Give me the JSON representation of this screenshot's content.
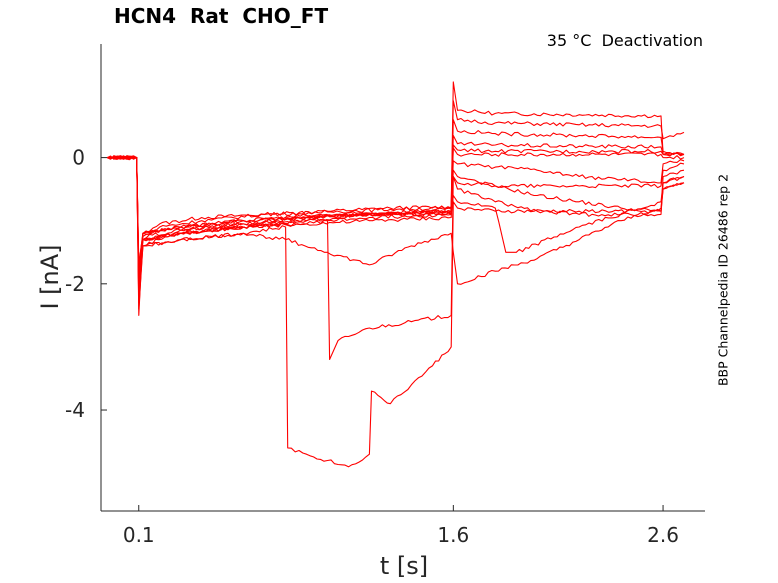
{
  "title": "HCN4  Rat  CHO_FT",
  "annotation": "35 °C  Deactivation",
  "side_label": "BBP Channelpedia ID 26486 rep 2",
  "trace_color": "#ff0000",
  "chart_data": {
    "type": "line",
    "title": "HCN4  Rat  CHO_FT",
    "xlabel": "t [s]",
    "ylabel": "I [nA]",
    "xlim": [
      -0.08,
      2.8
    ],
    "ylim": [
      -5.6,
      1.8
    ],
    "xticks": [
      0.1,
      1.6,
      2.6
    ],
    "xtick_labels": [
      "0.1",
      "1.6",
      "2.6"
    ],
    "yticks": [
      -4,
      -2,
      0
    ],
    "ytick_labels": [
      "-4",
      "-2",
      "0"
    ],
    "grid": false,
    "legend": "none",
    "series": [
      {
        "x": [
          -0.05,
          0.02,
          0.09,
          0.1,
          0.12,
          0.2,
          0.4,
          0.7,
          1.0,
          1.3,
          1.59,
          1.6,
          1.62,
          1.8,
          2.2,
          2.59,
          2.6,
          2.7
        ],
        "y": [
          0,
          -0.02,
          0,
          -2.5,
          -1.2,
          -1.05,
          -0.95,
          -0.9,
          -0.85,
          -0.8,
          -0.78,
          1.2,
          0.75,
          0.7,
          0.68,
          0.66,
          0.05,
          0.05
        ]
      },
      {
        "x": [
          -0.05,
          0.09,
          0.1,
          0.12,
          0.2,
          0.4,
          0.7,
          1.0,
          1.3,
          1.59,
          1.6,
          1.62,
          1.8,
          2.2,
          2.59,
          2.6,
          2.7
        ],
        "y": [
          0,
          0,
          -2.2,
          -1.3,
          -1.1,
          -1.0,
          -0.9,
          -0.86,
          -0.82,
          -0.8,
          0.9,
          0.6,
          0.55,
          0.52,
          0.5,
          0.3,
          0.4
        ]
      },
      {
        "x": [
          -0.05,
          0.09,
          0.1,
          0.12,
          0.3,
          0.6,
          0.9,
          1.2,
          1.59,
          1.6,
          1.62,
          1.8,
          2.2,
          2.59,
          2.6,
          2.7
        ],
        "y": [
          0,
          0,
          -2.0,
          -1.4,
          -1.15,
          -1.05,
          -0.95,
          -0.9,
          -0.85,
          0.6,
          0.42,
          0.38,
          0.35,
          0.32,
          0.1,
          0.05
        ]
      },
      {
        "x": [
          -0.05,
          0.09,
          0.1,
          0.12,
          0.3,
          0.6,
          0.9,
          1.2,
          1.59,
          1.6,
          1.62,
          1.8,
          2.2,
          2.59,
          2.6,
          2.7
        ],
        "y": [
          0,
          0,
          -1.9,
          -1.2,
          -1.1,
          -1.0,
          -0.92,
          -0.88,
          -0.82,
          0.35,
          0.22,
          0.2,
          0.18,
          0.17,
          0.05,
          0.05
        ]
      },
      {
        "x": [
          -0.05,
          0.09,
          0.1,
          0.12,
          0.3,
          0.6,
          0.9,
          1.2,
          1.59,
          1.6,
          1.62,
          1.8,
          2.2,
          2.59,
          2.6,
          2.7
        ],
        "y": [
          0,
          0,
          -1.8,
          -1.3,
          -1.2,
          -1.1,
          -1.0,
          -0.9,
          -0.9,
          0.2,
          0.12,
          0.1,
          0.1,
          0.1,
          0.05,
          0.05
        ]
      },
      {
        "x": [
          -0.05,
          0.09,
          0.1,
          0.12,
          0.3,
          0.6,
          0.9,
          1.2,
          1.59,
          1.6,
          1.62,
          1.8,
          2.2,
          2.59,
          2.6,
          2.7
        ],
        "y": [
          0,
          0,
          -1.7,
          -1.2,
          -1.1,
          -1.0,
          -0.95,
          -0.9,
          -0.85,
          0.15,
          0.05,
          0.05,
          0.05,
          0.05,
          0.0,
          0.0
        ]
      },
      {
        "x": [
          -0.05,
          0.09,
          0.1,
          0.12,
          0.3,
          0.6,
          0.9,
          1.2,
          1.59,
          1.6,
          1.62,
          1.8,
          2.0,
          2.2,
          2.4,
          2.59,
          2.6,
          2.7
        ],
        "y": [
          0,
          0,
          -1.9,
          -1.25,
          -1.15,
          -1.05,
          -0.95,
          -0.9,
          -0.88,
          -0.05,
          -0.1,
          -0.15,
          -0.2,
          -0.3,
          -0.35,
          -0.4,
          -0.1,
          -0.05
        ]
      },
      {
        "x": [
          -0.05,
          0.09,
          0.1,
          0.12,
          0.3,
          0.6,
          0.9,
          1.2,
          1.59,
          1.6,
          1.62,
          1.8,
          2.0,
          2.2,
          2.4,
          2.59,
          2.6,
          2.7
        ],
        "y": [
          0,
          0,
          -1.8,
          -1.3,
          -1.2,
          -1.1,
          -1.05,
          -1.0,
          -0.95,
          -0.2,
          -0.3,
          -0.45,
          -0.6,
          -0.7,
          -0.8,
          -0.85,
          -0.3,
          -0.2
        ]
      },
      {
        "x": [
          -0.05,
          0.09,
          0.1,
          0.12,
          0.3,
          0.6,
          0.9,
          1.2,
          1.59,
          1.6,
          1.62,
          1.8,
          2.0,
          2.2,
          2.4,
          2.59,
          2.6,
          2.7
        ],
        "y": [
          0,
          0,
          -1.7,
          -1.2,
          -1.1,
          -1.0,
          -0.95,
          -0.9,
          -0.85,
          -0.3,
          -0.5,
          -0.7,
          -0.85,
          -0.9,
          -0.9,
          -0.9,
          -0.4,
          -0.3
        ]
      },
      {
        "x": [
          -0.05,
          0.09,
          0.1,
          0.12,
          0.3,
          0.6,
          0.9,
          1.0,
          1.2,
          1.59,
          1.6,
          1.62,
          1.8,
          1.85,
          1.9,
          2.2,
          2.59,
          2.6,
          2.7
        ],
        "y": [
          0,
          0,
          -2.0,
          -1.3,
          -1.2,
          -1.1,
          -1.05,
          -1.0,
          -0.95,
          -0.9,
          -0.6,
          -0.7,
          -0.8,
          -1.5,
          -1.5,
          -1.1,
          -0.7,
          -0.4,
          -0.3
        ]
      },
      {
        "x": [
          -0.05,
          0.09,
          0.1,
          0.12,
          0.3,
          0.6,
          0.8,
          1.0,
          1.2,
          1.4,
          1.59,
          1.6,
          1.62,
          1.8,
          2.0,
          2.2,
          2.4,
          2.59,
          2.6,
          2.7
        ],
        "y": [
          0,
          0,
          -2.4,
          -1.4,
          -1.3,
          -1.2,
          -1.3,
          -1.5,
          -1.7,
          -1.4,
          -1.2,
          -1.5,
          -2.0,
          -1.8,
          -1.6,
          -1.3,
          -1.0,
          -0.8,
          -0.5,
          -0.4
        ]
      },
      {
        "x": [
          -0.05,
          0.09,
          0.1,
          0.12,
          0.3,
          0.6,
          0.9,
          1.0,
          1.01,
          1.05,
          1.2,
          1.4,
          1.59,
          1.6,
          1.62,
          1.8,
          2.2,
          2.59,
          2.6,
          2.7
        ],
        "y": [
          0,
          0,
          -2.1,
          -1.3,
          -1.2,
          -1.1,
          -1.0,
          -1.0,
          -3.2,
          -2.9,
          -2.7,
          -2.6,
          -2.5,
          -0.3,
          -0.4,
          -0.45,
          -0.45,
          -0.45,
          -0.2,
          -0.1
        ]
      },
      {
        "x": [
          -0.05,
          0.09,
          0.1,
          0.12,
          0.3,
          0.6,
          0.8,
          0.81,
          0.9,
          1.0,
          1.1,
          1.2,
          1.21,
          1.3,
          1.4,
          1.5,
          1.59,
          1.6,
          1.62,
          1.8,
          2.2,
          2.59,
          2.6,
          2.7
        ],
        "y": [
          0,
          0,
          -2.3,
          -1.4,
          -1.3,
          -1.2,
          -1.1,
          -4.6,
          -4.7,
          -4.8,
          -4.9,
          -4.7,
          -3.7,
          -3.9,
          -3.6,
          -3.3,
          -3.0,
          -0.7,
          -0.8,
          -0.85,
          -0.85,
          -0.85,
          -0.5,
          -0.4
        ]
      }
    ]
  }
}
